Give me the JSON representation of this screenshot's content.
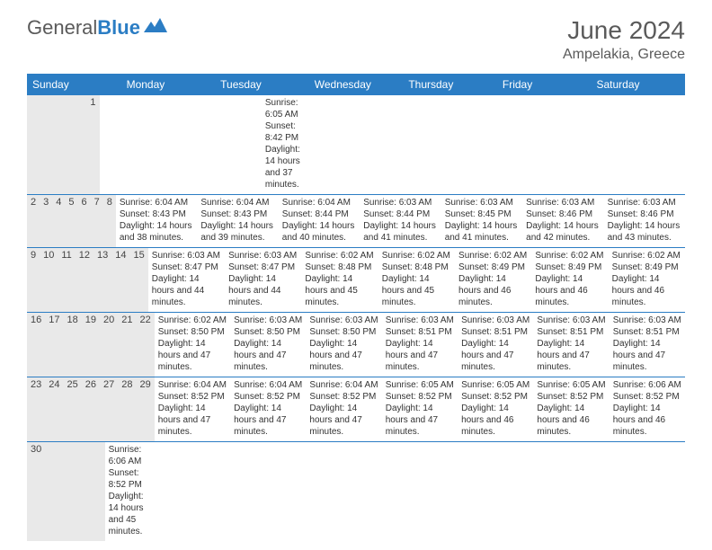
{
  "logo": {
    "text1": "General",
    "text2": "Blue"
  },
  "title": "June 2024",
  "location": "Ampelakia, Greece",
  "colors": {
    "header_bg": "#2b7dc4",
    "header_text": "#ffffff",
    "daynum_bg": "#e9e9e9",
    "border": "#2b7dc4",
    "body_text": "#333333",
    "title_text": "#5a5a5a"
  },
  "day_headers": [
    "Sunday",
    "Monday",
    "Tuesday",
    "Wednesday",
    "Thursday",
    "Friday",
    "Saturday"
  ],
  "weeks": [
    [
      null,
      null,
      null,
      null,
      null,
      null,
      {
        "n": "1",
        "sr": "6:05 AM",
        "ss": "8:42 PM",
        "dl": "14 hours and 37 minutes."
      }
    ],
    [
      {
        "n": "2",
        "sr": "6:04 AM",
        "ss": "8:43 PM",
        "dl": "14 hours and 38 minutes."
      },
      {
        "n": "3",
        "sr": "6:04 AM",
        "ss": "8:43 PM",
        "dl": "14 hours and 39 minutes."
      },
      {
        "n": "4",
        "sr": "6:04 AM",
        "ss": "8:44 PM",
        "dl": "14 hours and 40 minutes."
      },
      {
        "n": "5",
        "sr": "6:03 AM",
        "ss": "8:44 PM",
        "dl": "14 hours and 41 minutes."
      },
      {
        "n": "6",
        "sr": "6:03 AM",
        "ss": "8:45 PM",
        "dl": "14 hours and 41 minutes."
      },
      {
        "n": "7",
        "sr": "6:03 AM",
        "ss": "8:46 PM",
        "dl": "14 hours and 42 minutes."
      },
      {
        "n": "8",
        "sr": "6:03 AM",
        "ss": "8:46 PM",
        "dl": "14 hours and 43 minutes."
      }
    ],
    [
      {
        "n": "9",
        "sr": "6:03 AM",
        "ss": "8:47 PM",
        "dl": "14 hours and 44 minutes."
      },
      {
        "n": "10",
        "sr": "6:03 AM",
        "ss": "8:47 PM",
        "dl": "14 hours and 44 minutes."
      },
      {
        "n": "11",
        "sr": "6:02 AM",
        "ss": "8:48 PM",
        "dl": "14 hours and 45 minutes."
      },
      {
        "n": "12",
        "sr": "6:02 AM",
        "ss": "8:48 PM",
        "dl": "14 hours and 45 minutes."
      },
      {
        "n": "13",
        "sr": "6:02 AM",
        "ss": "8:49 PM",
        "dl": "14 hours and 46 minutes."
      },
      {
        "n": "14",
        "sr": "6:02 AM",
        "ss": "8:49 PM",
        "dl": "14 hours and 46 minutes."
      },
      {
        "n": "15",
        "sr": "6:02 AM",
        "ss": "8:49 PM",
        "dl": "14 hours and 46 minutes."
      }
    ],
    [
      {
        "n": "16",
        "sr": "6:02 AM",
        "ss": "8:50 PM",
        "dl": "14 hours and 47 minutes."
      },
      {
        "n": "17",
        "sr": "6:03 AM",
        "ss": "8:50 PM",
        "dl": "14 hours and 47 minutes."
      },
      {
        "n": "18",
        "sr": "6:03 AM",
        "ss": "8:50 PM",
        "dl": "14 hours and 47 minutes."
      },
      {
        "n": "19",
        "sr": "6:03 AM",
        "ss": "8:51 PM",
        "dl": "14 hours and 47 minutes."
      },
      {
        "n": "20",
        "sr": "6:03 AM",
        "ss": "8:51 PM",
        "dl": "14 hours and 47 minutes."
      },
      {
        "n": "21",
        "sr": "6:03 AM",
        "ss": "8:51 PM",
        "dl": "14 hours and 47 minutes."
      },
      {
        "n": "22",
        "sr": "6:03 AM",
        "ss": "8:51 PM",
        "dl": "14 hours and 47 minutes."
      }
    ],
    [
      {
        "n": "23",
        "sr": "6:04 AM",
        "ss": "8:52 PM",
        "dl": "14 hours and 47 minutes."
      },
      {
        "n": "24",
        "sr": "6:04 AM",
        "ss": "8:52 PM",
        "dl": "14 hours and 47 minutes."
      },
      {
        "n": "25",
        "sr": "6:04 AM",
        "ss": "8:52 PM",
        "dl": "14 hours and 47 minutes."
      },
      {
        "n": "26",
        "sr": "6:05 AM",
        "ss": "8:52 PM",
        "dl": "14 hours and 47 minutes."
      },
      {
        "n": "27",
        "sr": "6:05 AM",
        "ss": "8:52 PM",
        "dl": "14 hours and 46 minutes."
      },
      {
        "n": "28",
        "sr": "6:05 AM",
        "ss": "8:52 PM",
        "dl": "14 hours and 46 minutes."
      },
      {
        "n": "29",
        "sr": "6:06 AM",
        "ss": "8:52 PM",
        "dl": "14 hours and 46 minutes."
      }
    ],
    [
      {
        "n": "30",
        "sr": "6:06 AM",
        "ss": "8:52 PM",
        "dl": "14 hours and 45 minutes."
      },
      null,
      null,
      null,
      null,
      null,
      null
    ]
  ],
  "labels": {
    "sunrise": "Sunrise:",
    "sunset": "Sunset:",
    "daylight": "Daylight:"
  }
}
